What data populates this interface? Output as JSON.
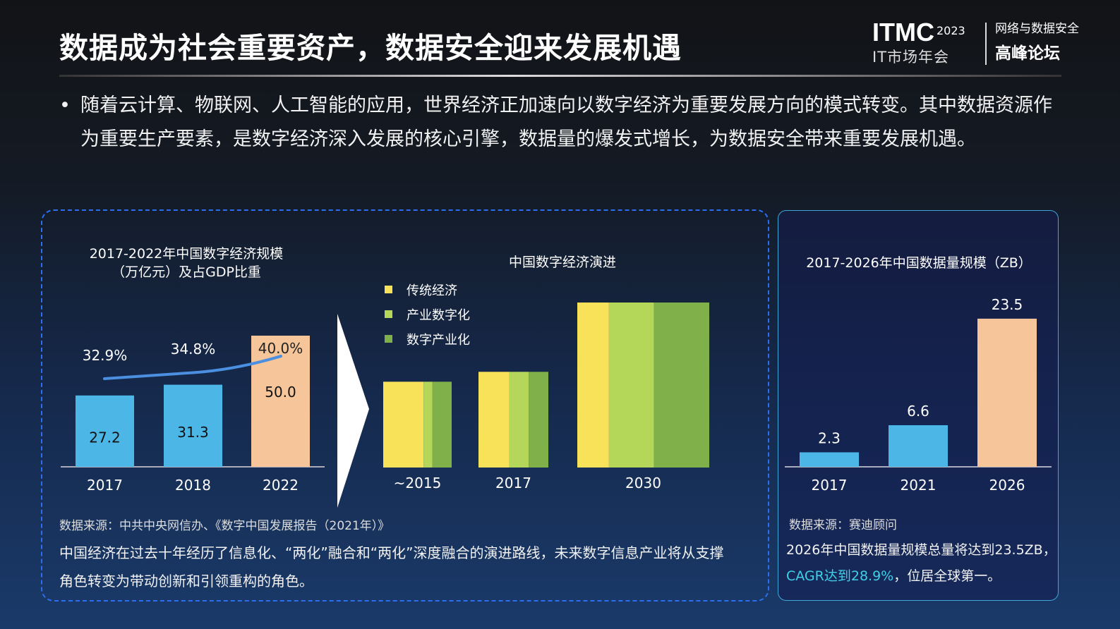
{
  "header": {
    "title": "数据成为社会重要资产，数据安全迎来发展机遇",
    "logo": {
      "brand": "ITMC",
      "year": "2023",
      "subtitle": "IT市场年会",
      "forum_line1": "网络与数据安全",
      "forum_line2": "高峰论坛"
    }
  },
  "bullet": "随着云计算、物联网、人工智能的应用，世界经济正加速向以数字经济为重要发展方向的模式转变。其中数据资源作为重要生产要素，是数字经济深入发展的核心引擎，数据量的爆发式增长，为数据安全带来重要发展机遇。",
  "left_panel": {
    "source": "数据来源：中共中央网信办、《数字中国发展报告（2021年）》",
    "description": "中国经济在过去十年经历了信息化、“两化”融合和“两化”深度融合的演进路线，未来数字信息产业将从支撑角色转变为带动创新和引领重构的角色。"
  },
  "right_panel": {
    "source": "数据来源：赛迪顾问",
    "desc_line1": "2026年中国数据量规模总量将达到23.5ZB，",
    "desc_highlight": "CAGR达到28.9%",
    "desc_rest": "，位居全球第一。"
  },
  "colors": {
    "blue": "#4cb6e6",
    "orange": "#f6c59a",
    "line": "#4a8fe0",
    "yellow": "#f8e25a",
    "lightgreen": "#b4d75a",
    "green": "#7fb04a"
  },
  "chart_data": [
    {
      "type": "bar",
      "title_line1": "2017-2022年中国数字经济规模",
      "title_line2": "（万亿元）及占GDP比重",
      "categories": [
        "2017",
        "2018",
        "2022"
      ],
      "values": [
        27.2,
        31.3,
        50.0
      ],
      "value_labels": [
        "27.2",
        "31.3",
        "50.0"
      ],
      "line_series": {
        "name": "占GDP比重",
        "values": [
          32.9,
          34.8,
          40.0
        ],
        "labels": [
          "32.9%",
          "34.8%",
          "40.0%"
        ]
      }
    },
    {
      "type": "bar",
      "title": "中国数字经济演进",
      "legend": [
        "传统经济",
        "产业数字化",
        "数字产业化"
      ],
      "categories": [
        "~2015",
        "2017",
        "2030"
      ],
      "relative_size": [
        0.52,
        0.58,
        1.0
      ],
      "shares": [
        [
          0.59,
          0.13,
          0.28
        ],
        [
          0.44,
          0.28,
          0.28
        ],
        [
          0.24,
          0.34,
          0.42
        ]
      ]
    },
    {
      "type": "bar",
      "title": "2017-2026年中国数据量规模（ZB）",
      "categories": [
        "2017",
        "2021",
        "2026"
      ],
      "values": [
        2.3,
        6.6,
        23.5
      ],
      "value_labels": [
        "2.3",
        "6.6",
        "23.5"
      ]
    }
  ]
}
